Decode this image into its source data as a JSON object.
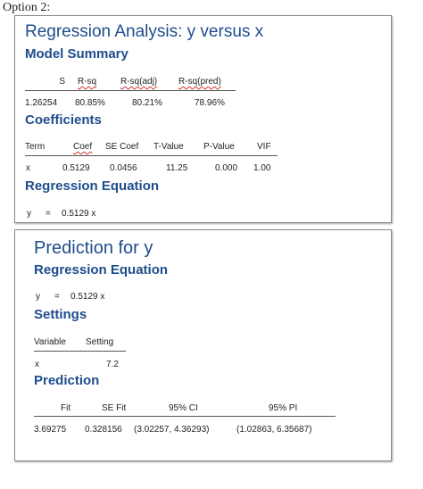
{
  "option_label": "Option 2:",
  "regression": {
    "title": "Regression Analysis: y versus x",
    "model_summary": {
      "heading": "Model Summary",
      "columns": [
        "S",
        "R-sq",
        "R-sq(adj)",
        "R-sq(pred)"
      ],
      "values": [
        "1.26254",
        "80.85%",
        "80.21%",
        "78.96%"
      ]
    },
    "coefficients": {
      "heading": "Coefficients",
      "columns": [
        "Term",
        "Coef",
        "SE Coef",
        "T-Value",
        "P-Value",
        "VIF"
      ],
      "row": [
        "x",
        "0.5129",
        "0.0456",
        "11.25",
        "0.000",
        "1.00"
      ]
    },
    "equation": {
      "heading": "Regression Equation",
      "lhs": "y",
      "eq": "=",
      "rhs": "0.5129 x"
    }
  },
  "prediction": {
    "title": "Prediction for y",
    "equation": {
      "heading": "Regression Equation",
      "lhs": "y",
      "eq": "=",
      "rhs": "0.5129 x"
    },
    "settings": {
      "heading": "Settings",
      "columns": [
        "Variable",
        "Setting"
      ],
      "row": [
        "x",
        "7.2"
      ]
    },
    "result": {
      "heading": "Prediction",
      "columns": [
        "Fit",
        "SE Fit",
        "95% CI",
        "95% PI"
      ],
      "row": [
        "3.69275",
        "0.328156",
        "(3.02257, 4.36293)",
        "(1.02863, 6.35687)"
      ]
    }
  }
}
